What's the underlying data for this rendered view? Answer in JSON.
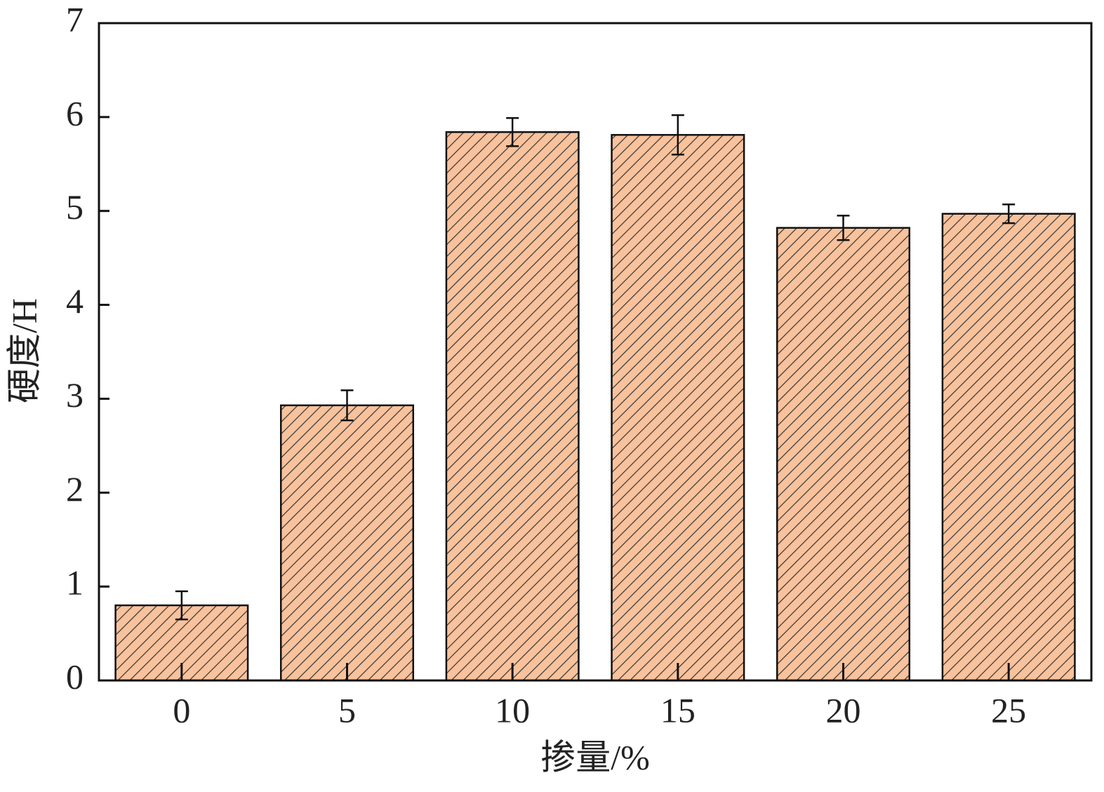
{
  "chart_data": {
    "type": "bar",
    "x_label": "掺量/%",
    "y_label": "硬度/H",
    "categories": [
      "0",
      "5",
      "10",
      "15",
      "20",
      "25"
    ],
    "values": [
      0.8,
      2.93,
      5.84,
      5.81,
      4.82,
      4.97
    ],
    "errors": [
      0.15,
      0.16,
      0.15,
      0.21,
      0.13,
      0.1
    ],
    "color": "#f8c29c",
    "ylim": [
      0,
      7
    ],
    "yticks": [
      0,
      1,
      2,
      3,
      4,
      5,
      6,
      7
    ]
  }
}
